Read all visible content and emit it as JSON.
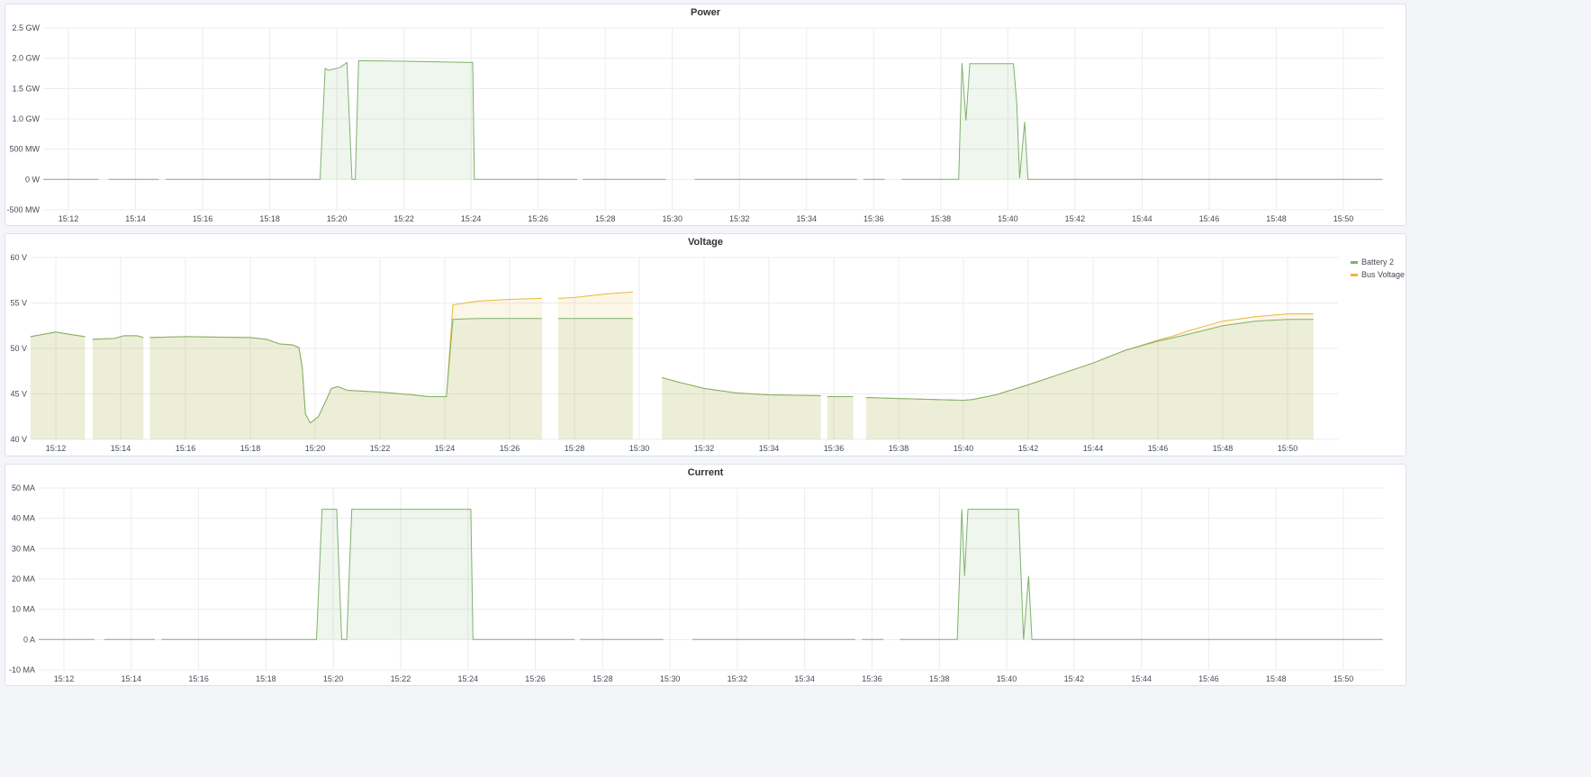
{
  "chart_data": [
    {
      "type": "area",
      "title": "Power",
      "unit_labels": true,
      "ylim": [
        -0.5,
        2.5
      ],
      "y_unit": "GW",
      "yticks": [
        {
          "v": 2.5,
          "label": "2.5 GW"
        },
        {
          "v": 2.0,
          "label": "2.0 GW"
        },
        {
          "v": 1.5,
          "label": "1.5 GW"
        },
        {
          "v": 1.0,
          "label": "1.0 GW"
        },
        {
          "v": 0.5,
          "label": "500 MW"
        },
        {
          "v": 0,
          "label": "0 W"
        },
        {
          "v": -0.5,
          "label": "-500 MW"
        }
      ],
      "xticks": [
        "15:12",
        "15:14",
        "15:16",
        "15:18",
        "15:20",
        "15:22",
        "15:24",
        "15:26",
        "15:28",
        "15:30",
        "15:32",
        "15:34",
        "15:36",
        "15:38",
        "15:40",
        "15:42",
        "15:44",
        "15:46",
        "15:48",
        "15:50"
      ],
      "grid": true,
      "series": [
        {
          "color": "#7eb26d",
          "points": [
            [
              "15:11:15",
              0
            ],
            [
              "15:12:54",
              0
            ],
            [
              "15:13:00",
              null
            ],
            [
              "15:13:12",
              0
            ],
            [
              "15:14:42",
              0
            ],
            [
              "15:14:48",
              null
            ],
            [
              "15:14:54",
              0
            ],
            [
              "15:19:30",
              0
            ],
            [
              "15:19:39",
              1.83
            ],
            [
              "15:19:45",
              1.8
            ],
            [
              "15:20:06",
              1.85
            ],
            [
              "15:20:18",
              1.93
            ],
            [
              "15:20:27",
              0
            ],
            [
              "15:20:33",
              0
            ],
            [
              "15:20:39",
              1.96
            ],
            [
              "15:22:00",
              1.95
            ],
            [
              "15:24:03",
              1.93
            ],
            [
              "15:24:06",
              0
            ],
            [
              "15:27:10",
              0
            ],
            [
              "15:27:14",
              null
            ],
            [
              "15:27:20",
              0
            ],
            [
              "15:29:48",
              0
            ],
            [
              "15:29:54",
              null
            ],
            [
              "15:30:40",
              0
            ],
            [
              "15:35:30",
              0
            ],
            [
              "15:35:36",
              null
            ],
            [
              "15:35:42",
              0
            ],
            [
              "15:36:20",
              0
            ],
            [
              "15:36:26",
              null
            ],
            [
              "15:36:50",
              0
            ],
            [
              "15:38:32",
              0
            ],
            [
              "15:38:38",
              1.92
            ],
            [
              "15:38:45",
              0.97
            ],
            [
              "15:38:52",
              1.91
            ],
            [
              "15:40:10",
              1.91
            ],
            [
              "15:40:16",
              1.25
            ],
            [
              "15:40:21",
              0.02
            ],
            [
              "15:40:30",
              0.95
            ],
            [
              "15:40:36",
              0
            ],
            [
              "15:51:10",
              0
            ]
          ]
        }
      ]
    },
    {
      "type": "area",
      "title": "Voltage",
      "ylim": [
        40,
        60
      ],
      "yticks": [
        {
          "v": 60,
          "label": "60 V"
        },
        {
          "v": 55,
          "label": "55 V"
        },
        {
          "v": 50,
          "label": "50 V"
        },
        {
          "v": 45,
          "label": "45 V"
        },
        {
          "v": 40,
          "label": "40 V"
        }
      ],
      "xticks": [
        "15:12",
        "15:14",
        "15:16",
        "15:18",
        "15:20",
        "15:22",
        "15:24",
        "15:26",
        "15:28",
        "15:30",
        "15:32",
        "15:34",
        "15:36",
        "15:38",
        "15:40",
        "15:42",
        "15:44",
        "15:46",
        "15:48",
        "15:50"
      ],
      "grid": true,
      "legend": "right",
      "series": [
        {
          "name": "Bus Voltage",
          "color": "#eab839",
          "points": [
            [
              "15:11:13",
              51.3
            ],
            [
              "15:11:42",
              51.6
            ],
            [
              "15:12:00",
              51.8
            ],
            [
              "15:12:30",
              51.5
            ],
            [
              "15:12:54",
              51.3
            ],
            [
              "15:13:00",
              null
            ],
            [
              "15:13:08",
              51.0
            ],
            [
              "15:13:48",
              51.1
            ],
            [
              "15:14:06",
              51.4
            ],
            [
              "15:14:30",
              51.4
            ],
            [
              "15:14:42",
              51.2
            ],
            [
              "15:14:48",
              null
            ],
            [
              "15:14:54",
              51.2
            ],
            [
              "15:16:00",
              51.3
            ],
            [
              "15:18:00",
              51.2
            ],
            [
              "15:18:30",
              51.0
            ],
            [
              "15:18:54",
              50.5
            ],
            [
              "15:19:18",
              50.4
            ],
            [
              "15:19:30",
              50.1
            ],
            [
              "15:19:36",
              48.0
            ],
            [
              "15:19:42",
              42.8
            ],
            [
              "15:19:51",
              41.8
            ],
            [
              "15:20:06",
              42.5
            ],
            [
              "15:20:18",
              44.0
            ],
            [
              "15:20:30",
              45.6
            ],
            [
              "15:20:42",
              45.8
            ],
            [
              "15:21:00",
              45.4
            ],
            [
              "15:22:00",
              45.2
            ],
            [
              "15:23:00",
              44.9
            ],
            [
              "15:23:30",
              44.7
            ],
            [
              "15:24:03",
              44.7
            ],
            [
              "15:24:15",
              54.8
            ],
            [
              "15:25:00",
              55.2
            ],
            [
              "15:26:00",
              55.4
            ],
            [
              "15:27:00",
              55.5
            ],
            [
              "15:27:06",
              null
            ],
            [
              "15:27:16",
              55.5
            ],
            [
              "15:27:20",
              null
            ],
            [
              "15:27:30",
              55.5
            ],
            [
              "15:28:00",
              55.6
            ],
            [
              "15:29:00",
              56.0
            ],
            [
              "15:29:48",
              56.2
            ],
            [
              "15:30:00",
              null
            ],
            [
              "15:30:42",
              46.8
            ],
            [
              "15:31:12",
              46.3
            ],
            [
              "15:32:00",
              45.6
            ],
            [
              "15:33:00",
              45.1
            ],
            [
              "15:34:00",
              44.9
            ],
            [
              "15:35:36",
              44.8
            ],
            [
              "15:35:40",
              null
            ],
            [
              "15:35:48",
              44.7
            ],
            [
              "15:36:36",
              44.7
            ],
            [
              "15:36:45",
              null
            ],
            [
              "15:37:00",
              44.6
            ],
            [
              "15:38:00",
              44.5
            ],
            [
              "15:39:00",
              44.4
            ],
            [
              "15:40:00",
              44.3
            ],
            [
              "15:40:18",
              44.4
            ],
            [
              "15:41:00",
              44.9
            ],
            [
              "15:42:00",
              46.0
            ],
            [
              "15:43:00",
              47.2
            ],
            [
              "15:44:00",
              48.4
            ],
            [
              "15:45:00",
              49.8
            ],
            [
              "15:46:00",
              50.9
            ],
            [
              "15:46:30",
              51.4
            ],
            [
              "15:47:00",
              52.0
            ],
            [
              "15:48:00",
              53.0
            ],
            [
              "15:49:00",
              53.5
            ],
            [
              "15:50:00",
              53.8
            ],
            [
              "15:50:48",
              53.8
            ]
          ]
        },
        {
          "name": "Battery 2",
          "color": "#7eb26d",
          "points": [
            [
              "15:11:13",
              51.3
            ],
            [
              "15:11:42",
              51.6
            ],
            [
              "15:12:00",
              51.8
            ],
            [
              "15:12:30",
              51.5
            ],
            [
              "15:12:54",
              51.3
            ],
            [
              "15:13:00",
              null
            ],
            [
              "15:13:08",
              51.0
            ],
            [
              "15:13:48",
              51.1
            ],
            [
              "15:14:06",
              51.4
            ],
            [
              "15:14:30",
              51.4
            ],
            [
              "15:14:42",
              51.2
            ],
            [
              "15:14:48",
              null
            ],
            [
              "15:14:54",
              51.2
            ],
            [
              "15:16:00",
              51.3
            ],
            [
              "15:18:00",
              51.2
            ],
            [
              "15:18:30",
              51.0
            ],
            [
              "15:18:54",
              50.5
            ],
            [
              "15:19:18",
              50.4
            ],
            [
              "15:19:30",
              50.1
            ],
            [
              "15:19:36",
              48.0
            ],
            [
              "15:19:42",
              42.8
            ],
            [
              "15:19:51",
              41.8
            ],
            [
              "15:20:06",
              42.5
            ],
            [
              "15:20:18",
              44.0
            ],
            [
              "15:20:30",
              45.6
            ],
            [
              "15:20:42",
              45.8
            ],
            [
              "15:21:00",
              45.4
            ],
            [
              "15:22:00",
              45.2
            ],
            [
              "15:23:00",
              44.9
            ],
            [
              "15:23:30",
              44.7
            ],
            [
              "15:24:03",
              44.7
            ],
            [
              "15:24:15",
              53.2
            ],
            [
              "15:25:00",
              53.3
            ],
            [
              "15:27:00",
              53.3
            ],
            [
              "15:27:06",
              null
            ],
            [
              "15:27:16",
              53.3
            ],
            [
              "15:27:20",
              null
            ],
            [
              "15:27:30",
              53.3
            ],
            [
              "15:29:48",
              53.3
            ],
            [
              "15:30:00",
              null
            ],
            [
              "15:30:42",
              46.8
            ],
            [
              "15:31:12",
              46.3
            ],
            [
              "15:32:00",
              45.6
            ],
            [
              "15:33:00",
              45.1
            ],
            [
              "15:34:00",
              44.9
            ],
            [
              "15:35:36",
              44.8
            ],
            [
              "15:35:40",
              null
            ],
            [
              "15:35:48",
              44.7
            ],
            [
              "15:36:36",
              44.7
            ],
            [
              "15:36:45",
              null
            ],
            [
              "15:37:00",
              44.6
            ],
            [
              "15:38:00",
              44.5
            ],
            [
              "15:39:00",
              44.4
            ],
            [
              "15:40:00",
              44.3
            ],
            [
              "15:40:18",
              44.4
            ],
            [
              "15:41:00",
              44.9
            ],
            [
              "15:42:00",
              46.0
            ],
            [
              "15:43:00",
              47.2
            ],
            [
              "15:44:00",
              48.4
            ],
            [
              "15:45:00",
              49.8
            ],
            [
              "15:46:00",
              50.8
            ],
            [
              "15:46:30",
              51.2
            ],
            [
              "15:47:00",
              51.6
            ],
            [
              "15:48:00",
              52.5
            ],
            [
              "15:49:00",
              53.0
            ],
            [
              "15:50:00",
              53.2
            ],
            [
              "15:50:48",
              53.2
            ]
          ]
        }
      ]
    },
    {
      "type": "area",
      "title": "Current",
      "ylim": [
        -10,
        50
      ],
      "y_unit": "MA",
      "yticks": [
        {
          "v": 50,
          "label": "50 MA"
        },
        {
          "v": 40,
          "label": "40 MA"
        },
        {
          "v": 30,
          "label": "30 MA"
        },
        {
          "v": 20,
          "label": "20 MA"
        },
        {
          "v": 10,
          "label": "10 MA"
        },
        {
          "v": 0,
          "label": "0 A"
        },
        {
          "v": -10,
          "label": "-10 MA"
        }
      ],
      "xticks": [
        "15:12",
        "15:14",
        "15:16",
        "15:18",
        "15:20",
        "15:22",
        "15:24",
        "15:26",
        "15:28",
        "15:30",
        "15:32",
        "15:34",
        "15:36",
        "15:38",
        "15:40",
        "15:42",
        "15:44",
        "15:46",
        "15:48",
        "15:50"
      ],
      "grid": true,
      "series": [
        {
          "color": "#7eb26d",
          "points": [
            [
              "15:11:15",
              0
            ],
            [
              "15:12:54",
              0
            ],
            [
              "15:13:00",
              null
            ],
            [
              "15:13:12",
              0
            ],
            [
              "15:14:42",
              0
            ],
            [
              "15:14:48",
              null
            ],
            [
              "15:14:54",
              0
            ],
            [
              "15:19:30",
              0
            ],
            [
              "15:19:40",
              43
            ],
            [
              "15:20:06",
              43
            ],
            [
              "15:20:15",
              0
            ],
            [
              "15:20:24",
              0
            ],
            [
              "15:20:33",
              43
            ],
            [
              "15:24:05",
              43
            ],
            [
              "15:24:09",
              0
            ],
            [
              "15:27:10",
              0
            ],
            [
              "15:27:14",
              null
            ],
            [
              "15:27:20",
              0
            ],
            [
              "15:29:48",
              0
            ],
            [
              "15:29:54",
              null
            ],
            [
              "15:30:40",
              0
            ],
            [
              "15:35:30",
              0
            ],
            [
              "15:35:36",
              null
            ],
            [
              "15:35:42",
              0
            ],
            [
              "15:36:20",
              0
            ],
            [
              "15:36:26",
              null
            ],
            [
              "15:36:50",
              0
            ],
            [
              "15:38:32",
              0
            ],
            [
              "15:38:40",
              43
            ],
            [
              "15:38:45",
              21
            ],
            [
              "15:38:51",
              43
            ],
            [
              "15:40:21",
              43
            ],
            [
              "15:40:30",
              0
            ],
            [
              "15:40:39",
              21
            ],
            [
              "15:40:45",
              0
            ],
            [
              "15:51:10",
              0
            ]
          ]
        }
      ]
    }
  ]
}
